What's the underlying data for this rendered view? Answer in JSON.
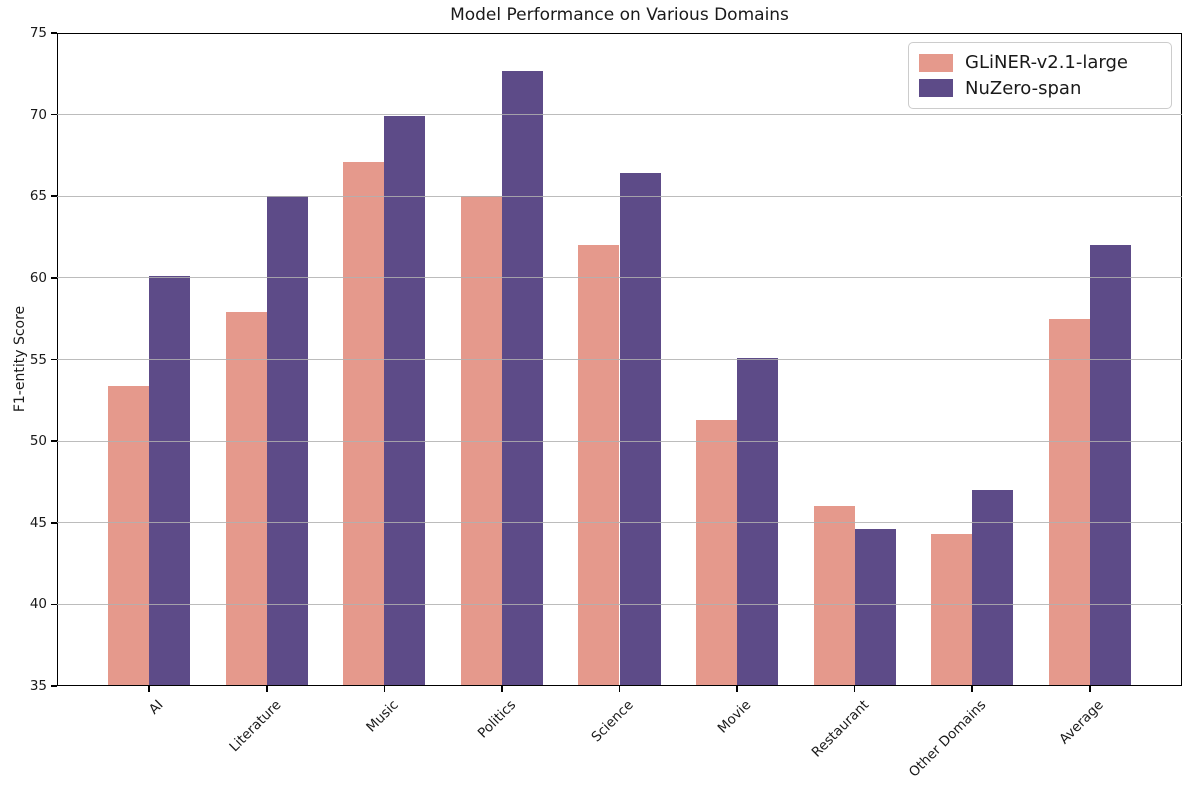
{
  "title": "Model Performance on Various Domains",
  "y_axis_label": "F1-entity Score",
  "colors": {
    "series1": "#e5998c",
    "series2": "#5d4b88",
    "grid": "#b0b0b0",
    "spine": "#000000"
  },
  "legend": {
    "position": "upper right",
    "entries": [
      {
        "label": "GLiNER-v2.1-large",
        "color": "#e5998c"
      },
      {
        "label": "NuZero-span",
        "color": "#5d4b88"
      }
    ]
  },
  "chart_data": {
    "type": "bar",
    "title": "Model Performance on Various Domains",
    "xlabel": "",
    "ylabel": "F1-entity Score",
    "categories": [
      "AI",
      "Literature",
      "Music",
      "Politics",
      "Science",
      "Movie",
      "Restaurant",
      "Other Domains",
      "Average"
    ],
    "series": [
      {
        "name": "GLiNER-v2.1-large",
        "color": "#e5998c",
        "values": [
          53.4,
          57.9,
          67.1,
          65.0,
          62.0,
          51.3,
          46.0,
          44.3,
          57.5
        ]
      },
      {
        "name": "NuZero-span",
        "color": "#5d4b88",
        "values": [
          60.1,
          65.0,
          69.9,
          72.7,
          66.4,
          55.1,
          44.6,
          47.0,
          62.0
        ]
      }
    ],
    "ylim": [
      35,
      75
    ],
    "yticks": [
      35,
      40,
      45,
      50,
      55,
      60,
      65,
      70,
      75
    ],
    "xtick_rotation": 45,
    "grid": true,
    "grid_axis": "y",
    "legend_position": "upper right",
    "bar_width": 0.35
  }
}
